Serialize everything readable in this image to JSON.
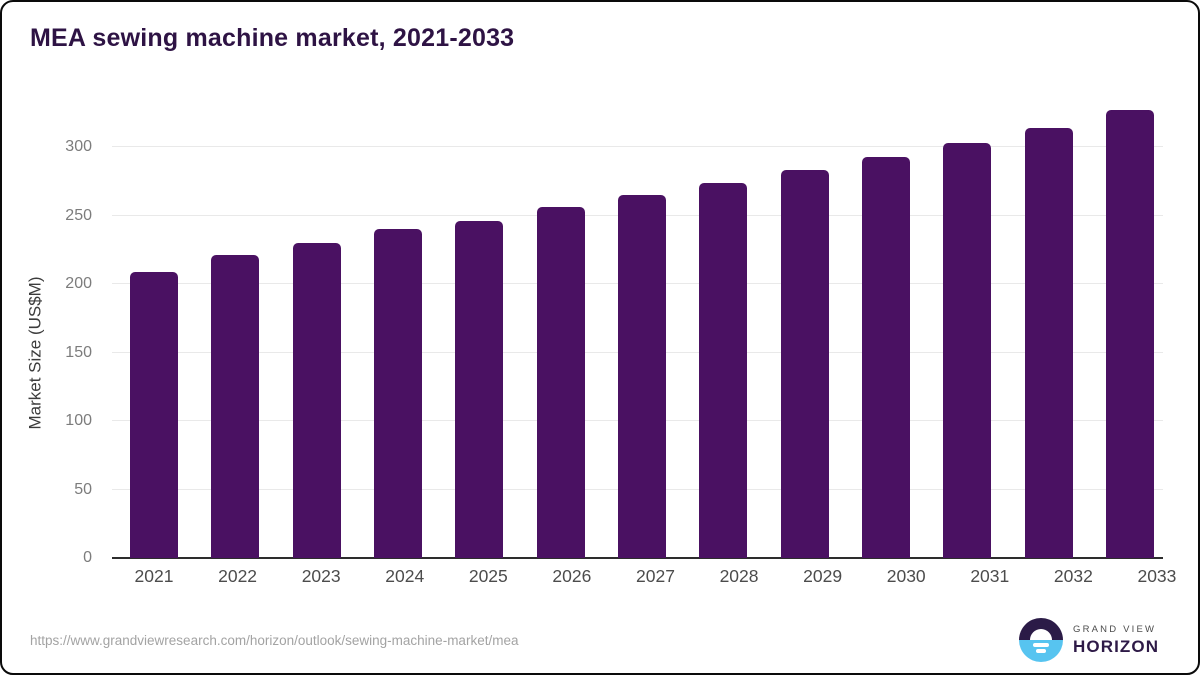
{
  "page": {
    "title": "MEA sewing machine market, 2021-2033",
    "footer_url": "https://www.grandviewresearch.com/horizon/outlook/sewing-machine-market/mea",
    "logo": {
      "line1": "GRAND VIEW",
      "line2": "HORIZON"
    }
  },
  "chart_data": {
    "type": "bar",
    "title": "MEA sewing machine market, 2021-2033",
    "categories": [
      "2021",
      "2022",
      "2023",
      "2024",
      "2025",
      "2026",
      "2027",
      "2028",
      "2029",
      "2030",
      "2031",
      "2032",
      "2033"
    ],
    "values": [
      209,
      221,
      230,
      240,
      246,
      256,
      265,
      274,
      283,
      293,
      303,
      314,
      327
    ],
    "xlabel": "",
    "ylabel": "Market Size (US$M)",
    "ylim": [
      0,
      300
    ],
    "yticks": [
      0,
      50,
      100,
      150,
      200,
      250,
      300
    ],
    "grid": "horizontal-only",
    "legend": "none",
    "bar_color": "#4a1162",
    "units": "US$M"
  },
  "colors": {
    "bar": "#4a1162",
    "title_text": "#2e1344",
    "axis_line": "#2d2d2d",
    "gridline": "#e9e9e9",
    "y_tick_text": "#7c7c7c",
    "x_tick_text": "#4c4c4c",
    "url_text": "#a3a3a3",
    "logo_top": "#2b1b47",
    "logo_bottom": "#57c4f0"
  }
}
